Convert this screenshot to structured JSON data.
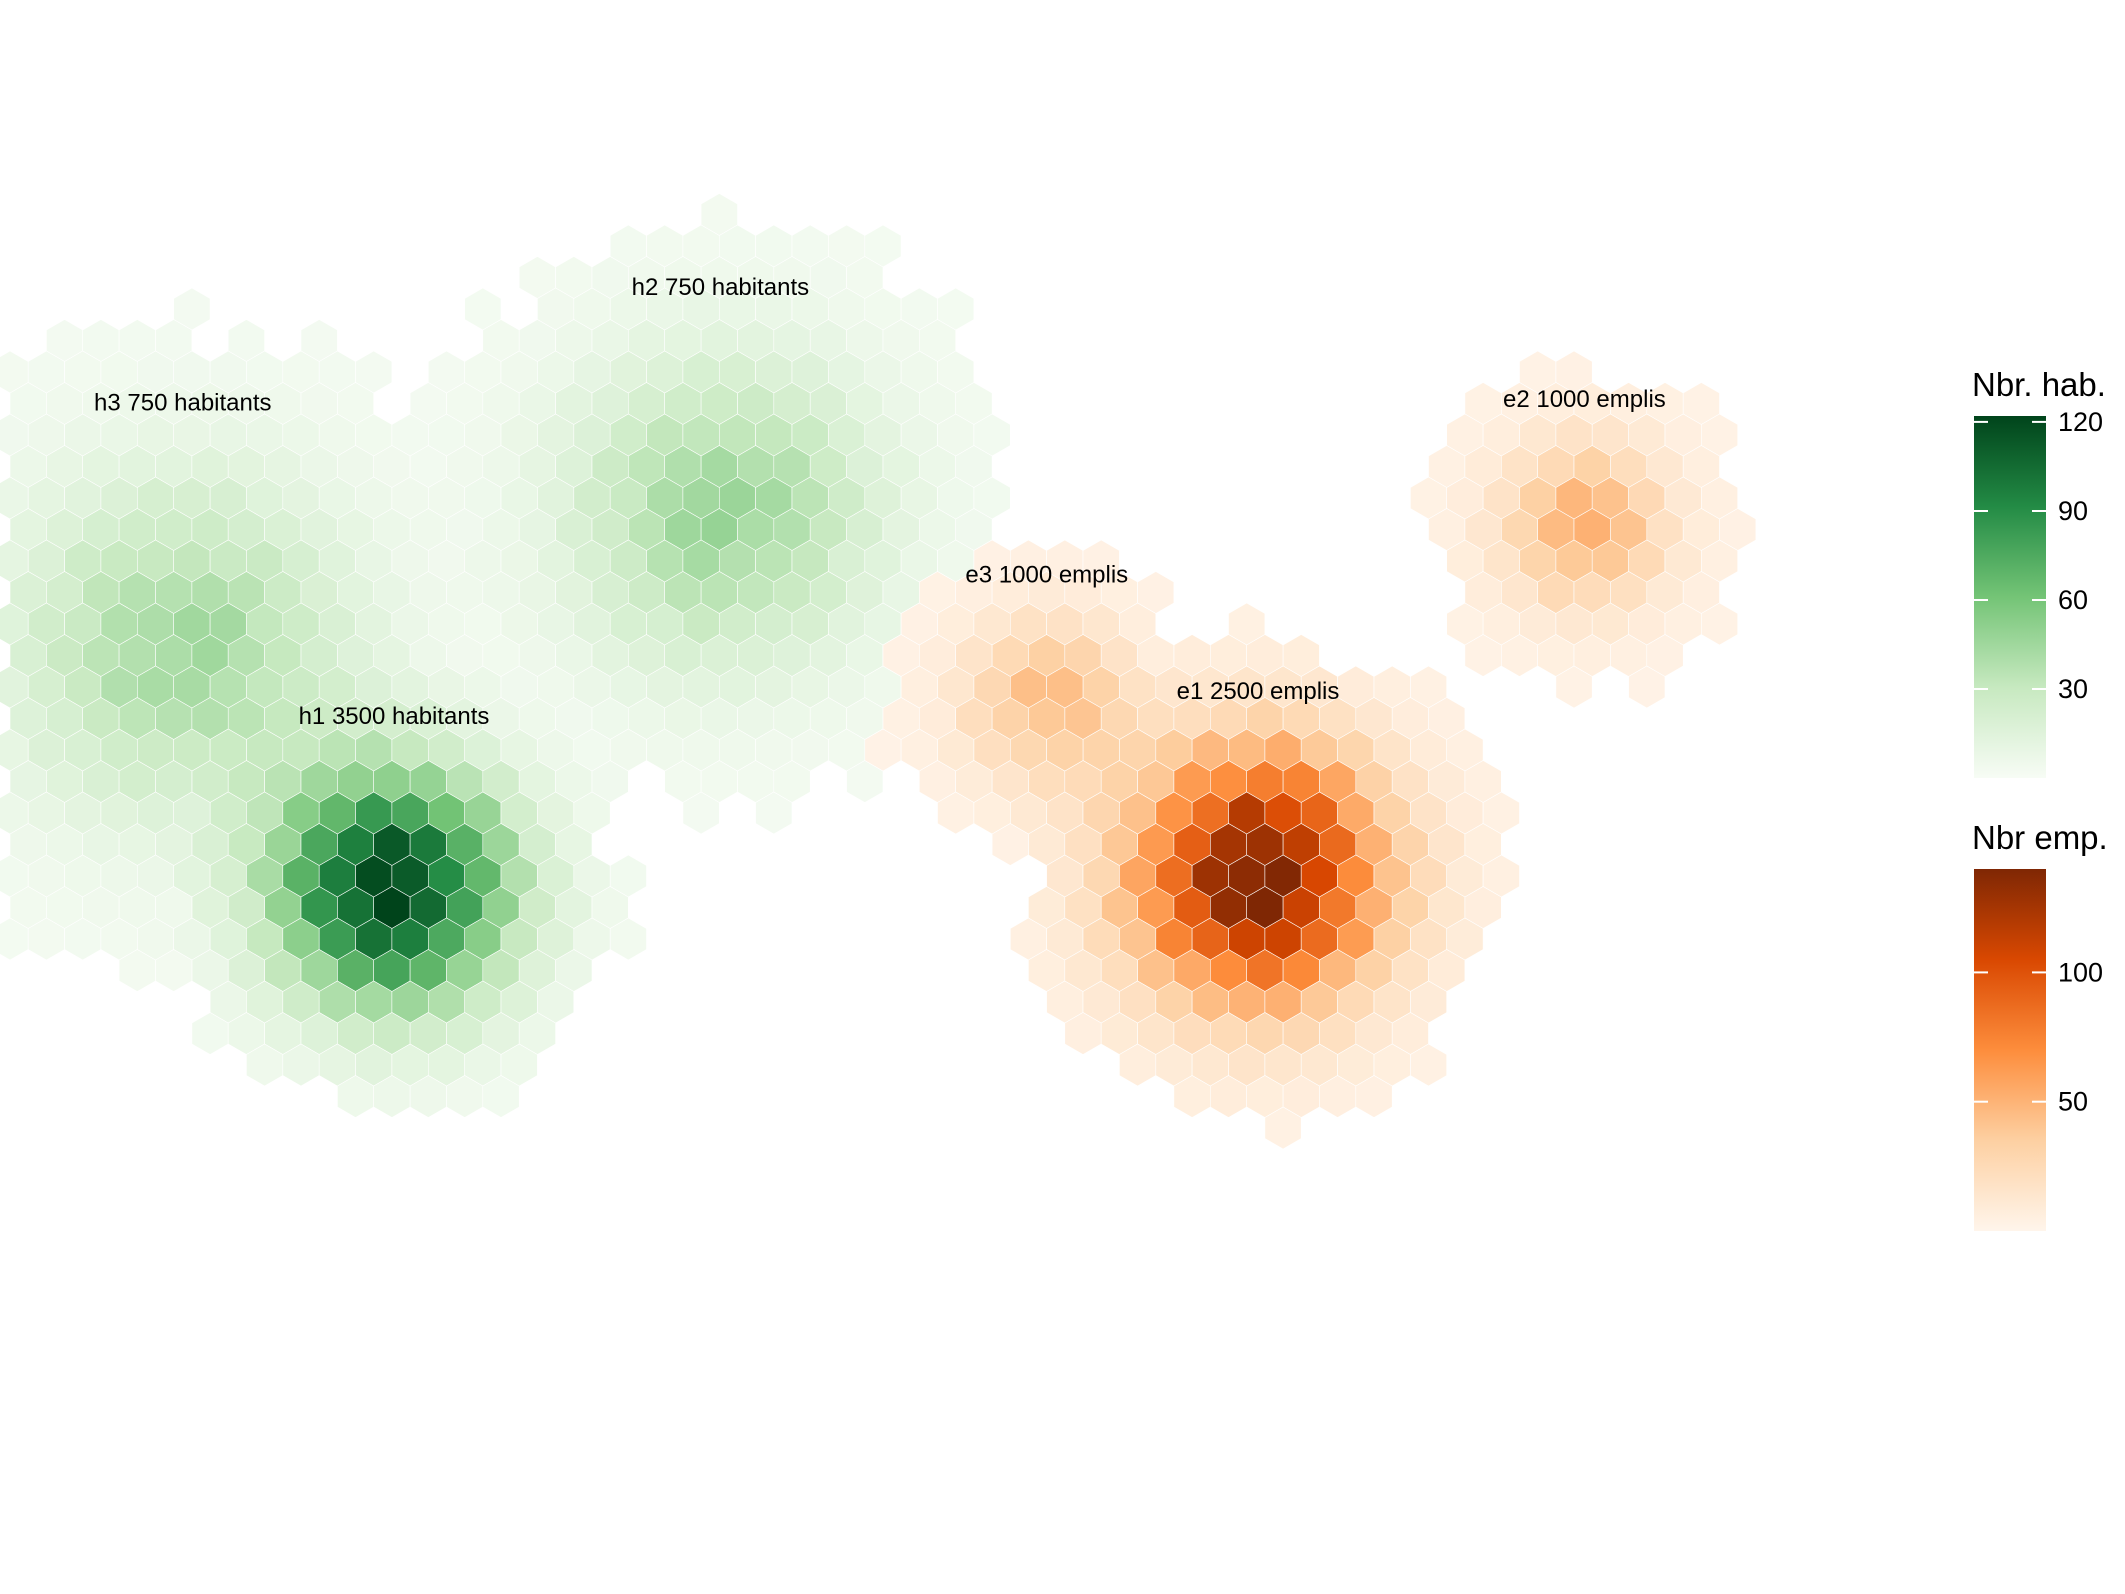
{
  "chart_data": {
    "type": "heatmap",
    "subtype": "hexbin",
    "title": "",
    "xlabel": "",
    "ylabel": "",
    "grid": false,
    "layers": [
      {
        "id": "habitants",
        "palette": "Greens",
        "colors": [
          "#f7fcf5",
          "#c7e9c0",
          "#74c476",
          "#238b45",
          "#00441b"
        ],
        "vmin": 0,
        "vmax": 122,
        "clusters": [
          {
            "label": "h1 3500 habitants",
            "x": 0.2,
            "y": 0.43,
            "peak": 122,
            "spread": 0.042
          },
          {
            "label": "h2 750 habitants",
            "x": 0.37,
            "y": 0.71,
            "peak": 44,
            "spread": 0.055
          },
          {
            "label": "h3 750 habitants",
            "x": 0.09,
            "y": 0.61,
            "peak": 42,
            "spread": 0.06
          }
        ]
      },
      {
        "id": "emplois",
        "palette": "Oranges",
        "colors": [
          "#fff5eb",
          "#fdd0a2",
          "#fd8d3c",
          "#d94801",
          "#7f2704"
        ],
        "vmin": 0,
        "vmax": 140,
        "clusters": [
          {
            "label": "e1 2500 emplis",
            "x": 0.65,
            "y": 0.44,
            "peak": 140,
            "spread": 0.045
          },
          {
            "label": "e2 1000 emplis",
            "x": 0.82,
            "y": 0.7,
            "peak": 48,
            "spread": 0.03
          },
          {
            "label": "e3 1000 emplis",
            "x": 0.54,
            "y": 0.57,
            "peak": 42,
            "spread": 0.03
          }
        ]
      }
    ],
    "legends": [
      {
        "title": "Nbr. hab.",
        "layer": "habitants",
        "ticks": [
          30,
          60,
          90,
          120
        ]
      },
      {
        "title": "Nbr emp.",
        "layer": "emplois",
        "ticks": [
          50,
          100
        ]
      }
    ],
    "legend_position": "right"
  }
}
